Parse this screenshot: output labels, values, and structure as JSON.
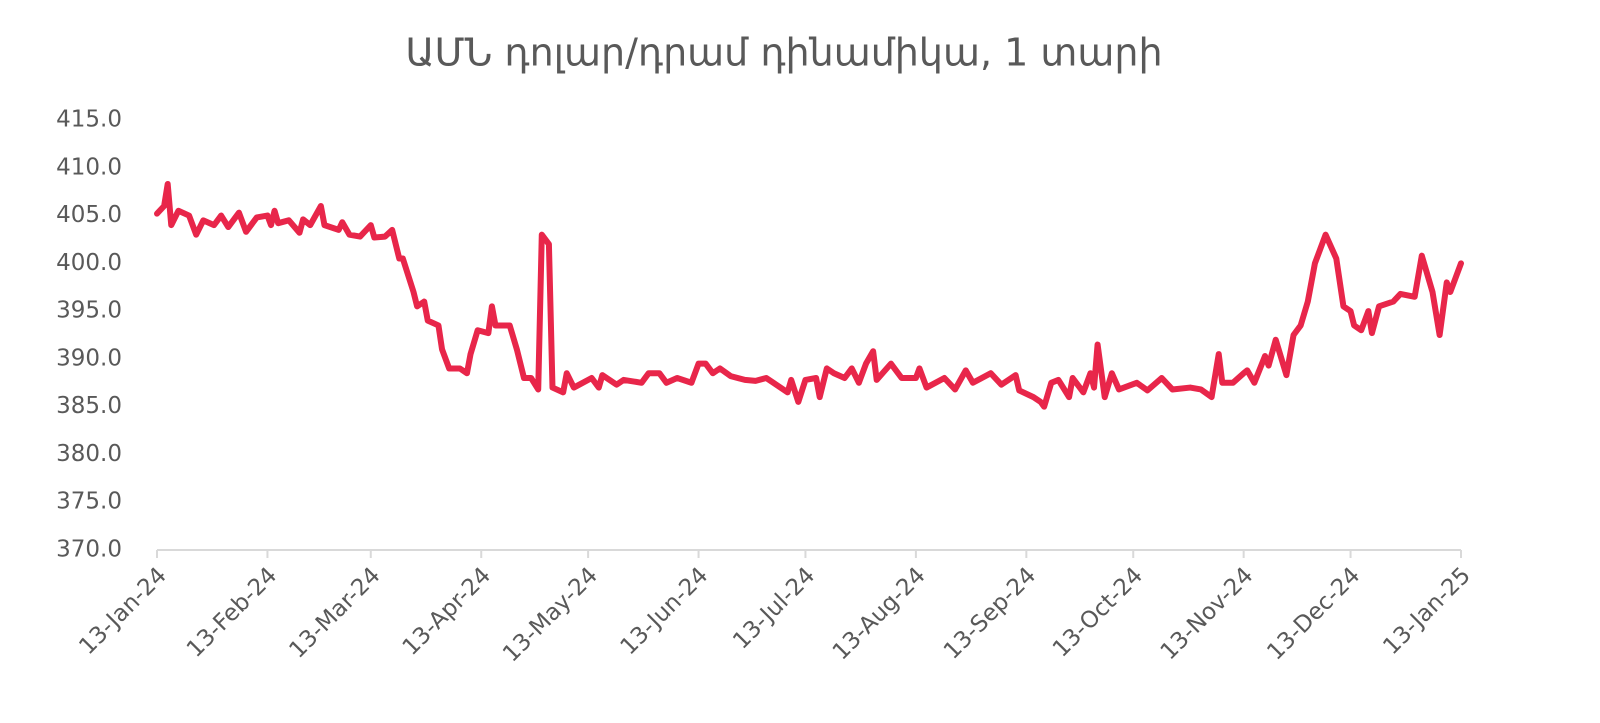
{
  "chart_data": {
    "type": "line",
    "title": "ԱՄՆ դոլար/դրամ դինամիկա, 1 տարի",
    "x": [
      "2024-01-13",
      "2024-01-15",
      "2024-01-16",
      "2024-01-17",
      "2024-01-19",
      "2024-01-22",
      "2024-01-24",
      "2024-01-26",
      "2024-01-29",
      "2024-01-31",
      "2024-02-02",
      "2024-02-05",
      "2024-02-07",
      "2024-02-10",
      "2024-02-13",
      "2024-02-14",
      "2024-02-15",
      "2024-02-16",
      "2024-02-19",
      "2024-02-22",
      "2024-02-23",
      "2024-02-25",
      "2024-02-28",
      "2024-02-29",
      "2024-03-04",
      "2024-03-05",
      "2024-03-07",
      "2024-03-10",
      "2024-03-13",
      "2024-03-14",
      "2024-03-17",
      "2024-03-19",
      "2024-03-21",
      "2024-03-22",
      "2024-03-25",
      "2024-03-26",
      "2024-03-28",
      "2024-03-29",
      "2024-04-01",
      "2024-04-02",
      "2024-04-04",
      "2024-04-07",
      "2024-04-09",
      "2024-04-10",
      "2024-04-12",
      "2024-04-15",
      "2024-04-16",
      "2024-04-17",
      "2024-04-21",
      "2024-04-23",
      "2024-04-25",
      "2024-04-27",
      "2024-04-29",
      "2024-04-30",
      "2024-05-02",
      "2024-05-03",
      "2024-05-06",
      "2024-05-07",
      "2024-05-09",
      "2024-05-14",
      "2024-05-16",
      "2024-05-17",
      "2024-05-21",
      "2024-05-23",
      "2024-05-28",
      "2024-05-30",
      "2024-06-02",
      "2024-06-04",
      "2024-06-07",
      "2024-06-11",
      "2024-06-13",
      "2024-06-15",
      "2024-06-17",
      "2024-06-19",
      "2024-06-22",
      "2024-06-26",
      "2024-06-29",
      "2024-07-02",
      "2024-07-04",
      "2024-07-08",
      "2024-07-09",
      "2024-07-11",
      "2024-07-13",
      "2024-07-16",
      "2024-07-17",
      "2024-07-19",
      "2024-07-21",
      "2024-07-24",
      "2024-07-26",
      "2024-07-28",
      "2024-07-30",
      "2024-08-01",
      "2024-08-02",
      "2024-08-06",
      "2024-08-09",
      "2024-08-13",
      "2024-08-14",
      "2024-08-16",
      "2024-08-21",
      "2024-08-24",
      "2024-08-27",
      "2024-08-29",
      "2024-09-03",
      "2024-09-06",
      "2024-09-10",
      "2024-09-11",
      "2024-09-15",
      "2024-09-17",
      "2024-09-18",
      "2024-09-20",
      "2024-09-22",
      "2024-09-25",
      "2024-09-26",
      "2024-09-29",
      "2024-10-01",
      "2024-10-02",
      "2024-10-03",
      "2024-10-05",
      "2024-10-07",
      "2024-10-09",
      "2024-10-14",
      "2024-10-17",
      "2024-10-21",
      "2024-10-24",
      "2024-10-29",
      "2024-11-01",
      "2024-11-04",
      "2024-11-06",
      "2024-11-07",
      "2024-11-10",
      "2024-11-13",
      "2024-11-14",
      "2024-11-16",
      "2024-11-19",
      "2024-11-20",
      "2024-11-22",
      "2024-11-25",
      "2024-11-27",
      "2024-11-29",
      "2024-12-01",
      "2024-12-03",
      "2024-12-06",
      "2024-12-09",
      "2024-12-11",
      "2024-12-13",
      "2024-12-14",
      "2024-12-16",
      "2024-12-18",
      "2024-12-19",
      "2024-12-21",
      "2024-12-25",
      "2024-12-27",
      "2024-12-31",
      "2025-01-02",
      "2025-01-05",
      "2025-01-07",
      "2025-01-09",
      "2025-01-10",
      "2025-01-13"
    ],
    "series": [
      {
        "color": "#e8264a",
        "values": [
          405.2,
          406,
          408.3,
          404,
          405.5,
          405,
          403,
          404.5,
          404,
          405,
          403.8,
          405.3,
          403.3,
          404.8,
          405,
          404,
          405.5,
          404.2,
          404.5,
          403.2,
          404.6,
          404,
          406,
          404,
          403.5,
          404.3,
          403,
          402.8,
          404,
          402.7,
          402.8,
          403.5,
          400.5,
          400.5,
          397,
          395.5,
          396,
          394,
          393.5,
          391,
          389,
          389,
          388.5,
          390.5,
          393,
          392.7,
          395.5,
          393.5,
          393.5,
          391,
          388,
          388,
          386.8,
          403,
          402,
          387,
          386.5,
          388.5,
          387,
          388,
          387,
          388.3,
          387.3,
          387.8,
          387.5,
          388.5,
          388.5,
          387.5,
          388,
          387.5,
          389.5,
          389.5,
          388.5,
          389,
          388.2,
          387.8,
          387.7,
          388,
          387.5,
          386.5,
          387.8,
          385.5,
          387.8,
          388,
          386,
          389,
          388.5,
          388,
          389,
          387.5,
          389.5,
          390.8,
          387.8,
          389.5,
          388,
          388,
          389,
          387,
          388,
          386.8,
          388.8,
          387.5,
          388.5,
          387.3,
          388.3,
          386.7,
          386,
          385.5,
          385,
          387.5,
          387.8,
          386,
          388,
          386.5,
          388.5,
          387,
          391.5,
          386,
          388.5,
          386.8,
          387.5,
          386.7,
          388,
          386.8,
          387,
          386.8,
          386,
          390.5,
          387.5,
          387.5,
          388.5,
          388.8,
          387.5,
          390.3,
          389.3,
          392,
          388.3,
          392.5,
          393.5,
          396,
          400,
          403,
          400.5,
          395.5,
          395,
          393.5,
          393,
          395,
          392.7,
          395.5,
          396,
          396.8,
          396.5,
          400.8,
          397,
          392.5,
          398,
          397,
          400
        ]
      }
    ],
    "xlim": [
      "2024-01-13",
      "2025-01-13"
    ],
    "xticks": [
      {
        "value": "2024-01-13",
        "label": "13-Jan-24"
      },
      {
        "value": "2024-02-13",
        "label": "13-Feb-24"
      },
      {
        "value": "2024-03-13",
        "label": "13-Mar-24"
      },
      {
        "value": "2024-04-13",
        "label": "13-Apr-24"
      },
      {
        "value": "2024-05-13",
        "label": "13-May-24"
      },
      {
        "value": "2024-06-13",
        "label": "13-Jun-24"
      },
      {
        "value": "2024-07-13",
        "label": "13-Jul-24"
      },
      {
        "value": "2024-08-13",
        "label": "13-Aug-24"
      },
      {
        "value": "2024-09-13",
        "label": "13-Sep-24"
      },
      {
        "value": "2024-10-13",
        "label": "13-Oct-24"
      },
      {
        "value": "2024-11-13",
        "label": "13-Nov-24"
      },
      {
        "value": "2024-12-13",
        "label": "13-Dec-24"
      },
      {
        "value": "2025-01-13",
        "label": "13-Jan-25"
      }
    ],
    "ylim": [
      370,
      415
    ],
    "yticks": [
      {
        "value": 370,
        "label": "370.0"
      },
      {
        "value": 375,
        "label": "375.0"
      },
      {
        "value": 380,
        "label": "380.0"
      },
      {
        "value": 385,
        "label": "385.0"
      },
      {
        "value": 390,
        "label": "390.0"
      },
      {
        "value": 395,
        "label": "395.0"
      },
      {
        "value": 400,
        "label": "400.0"
      },
      {
        "value": 405,
        "label": "405.0"
      },
      {
        "value": 410,
        "label": "410.0"
      },
      {
        "value": 415,
        "label": "415.0"
      }
    ],
    "grid": false
  }
}
